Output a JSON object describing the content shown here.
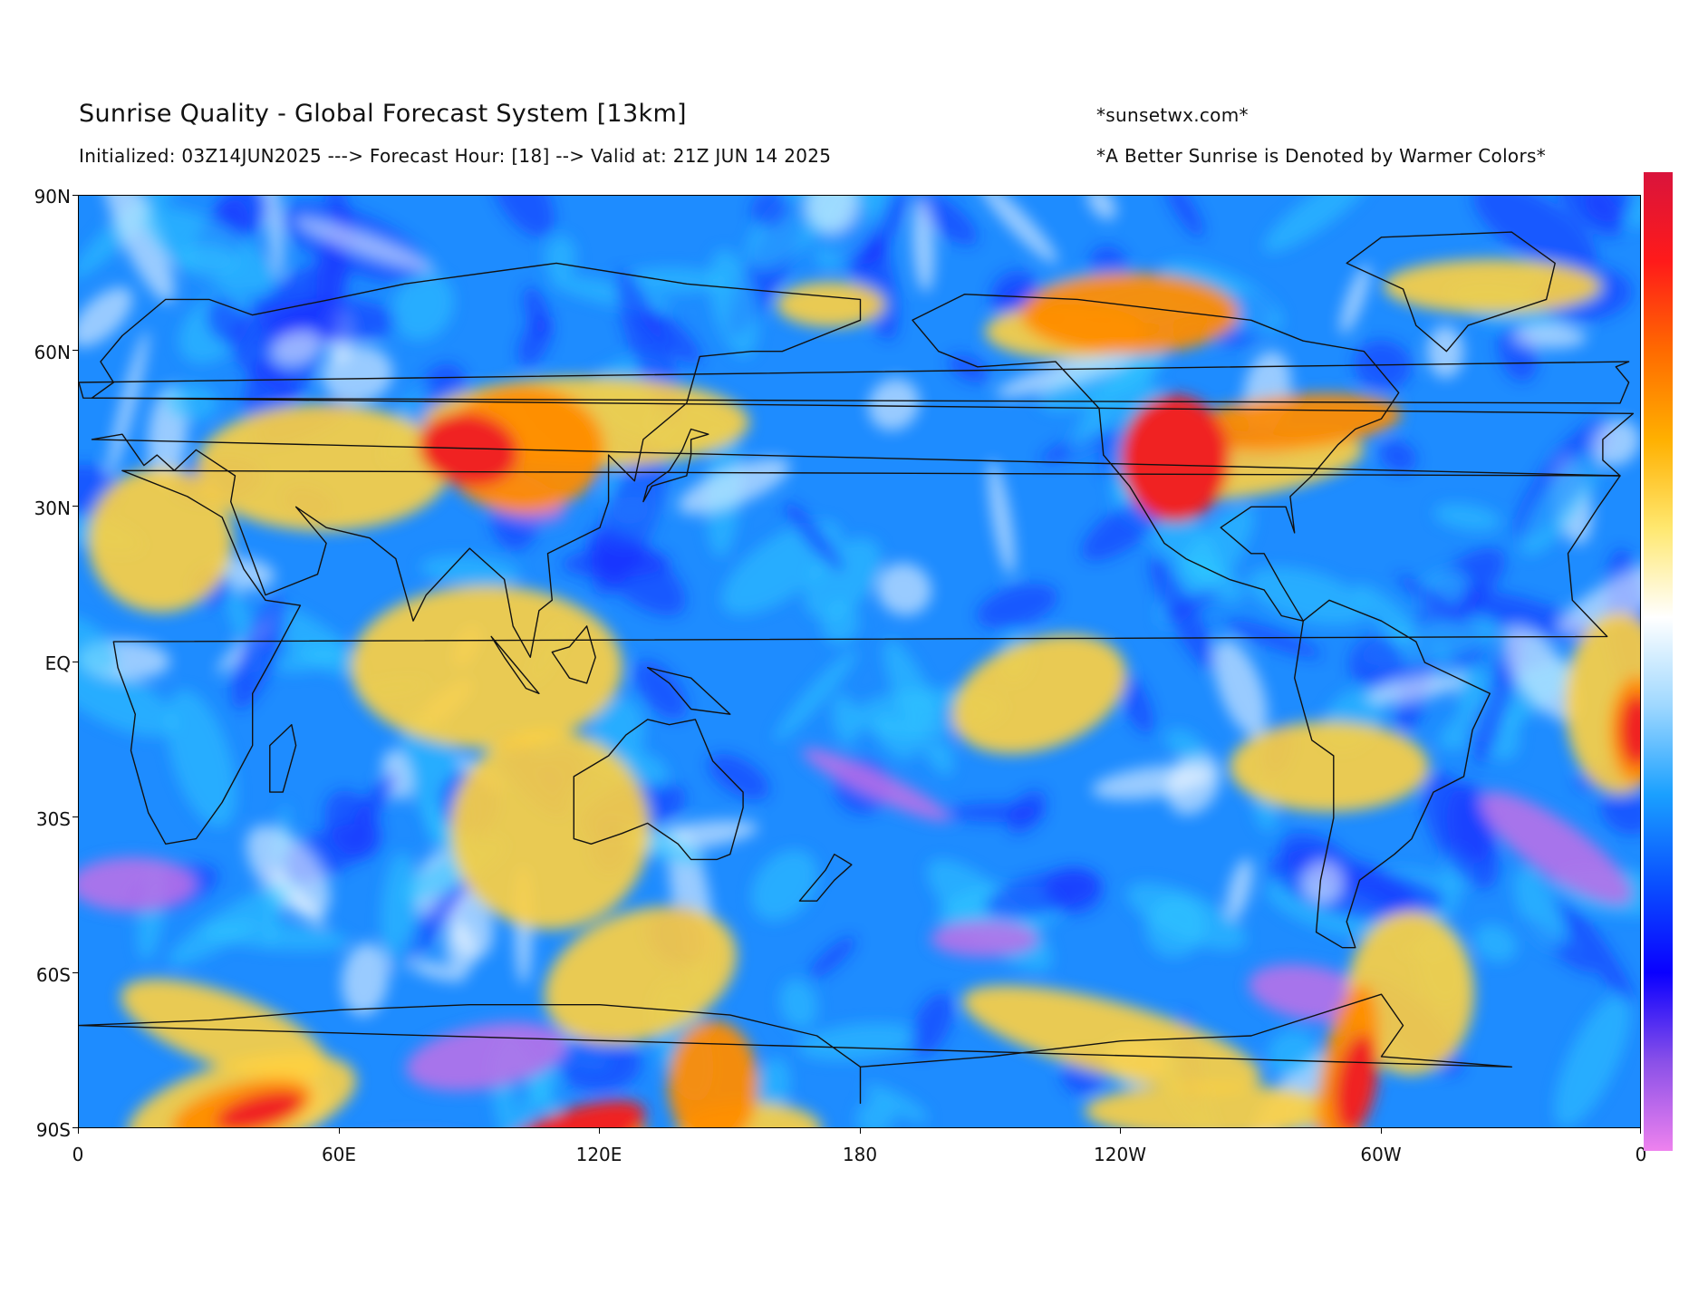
{
  "header": {
    "title": "Sunrise Quality - Global Forecast System [13km]",
    "subtitle": "Initialized: 03Z14JUN2025 ---> Forecast Hour: [18] --> Valid at: 21Z JUN 14 2025",
    "credit": "*sunsetwx.com*",
    "note": "*A Better Sunrise is Denoted by Warmer Colors*"
  },
  "axes": {
    "lat_labels": [
      "90N",
      "60N",
      "30N",
      "EQ",
      "30S",
      "60S",
      "90S"
    ],
    "lon_labels": [
      "0",
      "60E",
      "120E",
      "180",
      "120W",
      "60W",
      "0"
    ]
  },
  "colorbar": {
    "colors": [
      "#d9143c",
      "#ff1a1a",
      "#ff6a00",
      "#ffb000",
      "#ffe870",
      "#ffffff",
      "#9fd8ff",
      "#1aa0ff",
      "#0a50ff",
      "#0a00ff",
      "#8a50e8",
      "#ee82ee"
    ]
  },
  "palette": {
    "ocean_base": "#1e8cff",
    "deep_blue": "#1530ff",
    "cyan": "#30c8ff",
    "white": "#ffffff",
    "yellow": "#ffd040",
    "orange": "#ff8c00",
    "red": "#f02020",
    "violet": "#c070e8"
  }
}
